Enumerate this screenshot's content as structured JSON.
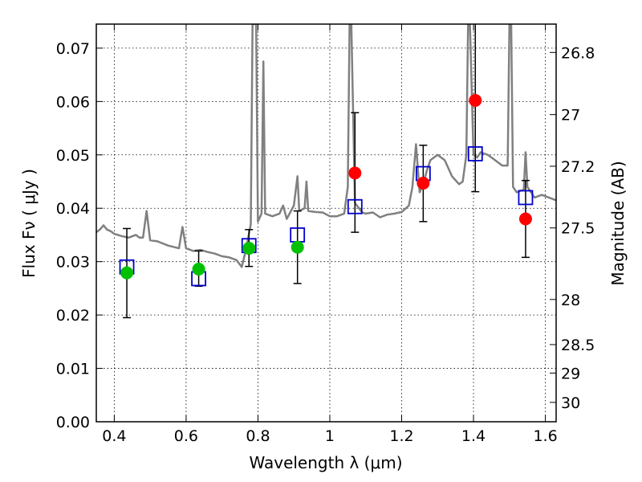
{
  "chart_data": {
    "type": "scatter",
    "xlabel": "Wavelength  λ (μm)",
    "ylabel": "Flux  Fν  ( μJy )",
    "y2label": "Magnitude (AB)",
    "xlim": [
      0.35,
      1.63
    ],
    "ylim": [
      0.0,
      0.0745
    ],
    "grid": true,
    "x_ticks": [
      0.4,
      0.6,
      0.8,
      1.0,
      1.2,
      1.4,
      1.6
    ],
    "x_tick_labels": [
      "0.4",
      "0.6",
      "0.8",
      "1",
      "1.2",
      "1.4",
      "1.6"
    ],
    "y_ticks": [
      0.0,
      0.01,
      0.02,
      0.03,
      0.04,
      0.05,
      0.06,
      0.07
    ],
    "y_tick_labels": [
      "0.00",
      "0.01",
      "0.02",
      "0.03",
      "0.04",
      "0.05",
      "0.06",
      "0.07"
    ],
    "y2_ticks": [
      26.8,
      27.0,
      27.2,
      27.5,
      28.0,
      28.5,
      29.0,
      30.0
    ],
    "y2_tick_labels": [
      "26.8",
      "27",
      "27.2",
      "27.5",
      "28",
      "28.5",
      "29",
      "30"
    ],
    "colors": {
      "model": "#808080",
      "green": "#00c000",
      "red": "#ff0000",
      "square": "#0000cc",
      "error": "#000000",
      "grid": "#000000"
    },
    "observed_points": [
      {
        "x": 0.435,
        "y": 0.0279,
        "yerr_low": 0.0084,
        "yerr_high": 0.0083,
        "color": "green"
      },
      {
        "x": 0.635,
        "y": 0.0286,
        "yerr_low": 0.0032,
        "yerr_high": 0.0034,
        "color": "green"
      },
      {
        "x": 0.775,
        "y": 0.0325,
        "yerr_low": 0.0034,
        "yerr_high": 0.0035,
        "color": "green"
      },
      {
        "x": 0.91,
        "y": 0.0327,
        "yerr_low": 0.0068,
        "yerr_high": 0.0068,
        "color": "green"
      },
      {
        "x": 1.07,
        "y": 0.0466,
        "yerr_low": 0.0111,
        "yerr_high": 0.0113,
        "color": "red"
      },
      {
        "x": 1.26,
        "y": 0.0447,
        "yerr_low": 0.0072,
        "yerr_high": 0.0071,
        "color": "red"
      },
      {
        "x": 1.405,
        "y": 0.0602,
        "yerr_low": 0.0171,
        "yerr_high": 0.0168,
        "color": "red"
      },
      {
        "x": 1.545,
        "y": 0.038,
        "yerr_low": 0.0072,
        "yerr_high": 0.0072,
        "color": "red"
      }
    ],
    "model_points": [
      {
        "x": 0.435,
        "y": 0.029
      },
      {
        "x": 0.635,
        "y": 0.0268
      },
      {
        "x": 0.775,
        "y": 0.033
      },
      {
        "x": 0.91,
        "y": 0.035
      },
      {
        "x": 1.07,
        "y": 0.0403
      },
      {
        "x": 1.26,
        "y": 0.0465
      },
      {
        "x": 1.405,
        "y": 0.0502
      },
      {
        "x": 1.545,
        "y": 0.042
      }
    ],
    "model_spectrum": [
      [
        0.35,
        0.0355
      ],
      [
        0.36,
        0.036
      ],
      [
        0.37,
        0.0368
      ],
      [
        0.38,
        0.036
      ],
      [
        0.39,
        0.0357
      ],
      [
        0.4,
        0.0352
      ],
      [
        0.42,
        0.0348
      ],
      [
        0.44,
        0.0345
      ],
      [
        0.46,
        0.035
      ],
      [
        0.47,
        0.0345
      ],
      [
        0.48,
        0.0345
      ],
      [
        0.49,
        0.0395
      ],
      [
        0.5,
        0.034
      ],
      [
        0.52,
        0.0338
      ],
      [
        0.55,
        0.033
      ],
      [
        0.58,
        0.0325
      ],
      [
        0.59,
        0.0365
      ],
      [
        0.6,
        0.0325
      ],
      [
        0.62,
        0.032
      ],
      [
        0.64,
        0.0322
      ],
      [
        0.66,
        0.0318
      ],
      [
        0.68,
        0.0315
      ],
      [
        0.7,
        0.031
      ],
      [
        0.72,
        0.0308
      ],
      [
        0.74,
        0.0303
      ],
      [
        0.755,
        0.029
      ],
      [
        0.765,
        0.0318
      ],
      [
        0.78,
        0.037
      ],
      [
        0.785,
        0.0745
      ],
      [
        0.795,
        0.0745
      ],
      [
        0.8,
        0.0375
      ],
      [
        0.81,
        0.039
      ],
      [
        0.815,
        0.0675
      ],
      [
        0.82,
        0.039
      ],
      [
        0.84,
        0.0385
      ],
      [
        0.86,
        0.039
      ],
      [
        0.87,
        0.0405
      ],
      [
        0.88,
        0.038
      ],
      [
        0.9,
        0.0405
      ],
      [
        0.91,
        0.046
      ],
      [
        0.915,
        0.0395
      ],
      [
        0.93,
        0.04
      ],
      [
        0.935,
        0.045
      ],
      [
        0.94,
        0.0395
      ],
      [
        0.96,
        0.0393
      ],
      [
        0.98,
        0.0392
      ],
      [
        1.0,
        0.0385
      ],
      [
        1.02,
        0.0385
      ],
      [
        1.04,
        0.039
      ],
      [
        1.05,
        0.044
      ],
      [
        1.055,
        0.0745
      ],
      [
        1.06,
        0.0745
      ],
      [
        1.07,
        0.041
      ],
      [
        1.09,
        0.0392
      ],
      [
        1.1,
        0.039
      ],
      [
        1.12,
        0.0392
      ],
      [
        1.14,
        0.0383
      ],
      [
        1.16,
        0.0388
      ],
      [
        1.18,
        0.039
      ],
      [
        1.2,
        0.0393
      ],
      [
        1.22,
        0.0405
      ],
      [
        1.23,
        0.044
      ],
      [
        1.24,
        0.052
      ],
      [
        1.25,
        0.043
      ],
      [
        1.26,
        0.0445
      ],
      [
        1.27,
        0.047
      ],
      [
        1.28,
        0.049
      ],
      [
        1.3,
        0.05
      ],
      [
        1.32,
        0.049
      ],
      [
        1.34,
        0.046
      ],
      [
        1.36,
        0.0445
      ],
      [
        1.37,
        0.045
      ],
      [
        1.38,
        0.05
      ],
      [
        1.385,
        0.0745
      ],
      [
        1.39,
        0.0745
      ],
      [
        1.4,
        0.05
      ],
      [
        1.41,
        0.0495
      ],
      [
        1.42,
        0.0505
      ],
      [
        1.44,
        0.05
      ],
      [
        1.46,
        0.049
      ],
      [
        1.48,
        0.048
      ],
      [
        1.495,
        0.048
      ],
      [
        1.5,
        0.0745
      ],
      [
        1.505,
        0.0745
      ],
      [
        1.51,
        0.044
      ],
      [
        1.52,
        0.043
      ],
      [
        1.54,
        0.0435
      ],
      [
        1.545,
        0.0505
      ],
      [
        1.55,
        0.044
      ],
      [
        1.57,
        0.042
      ],
      [
        1.59,
        0.0425
      ],
      [
        1.61,
        0.042
      ],
      [
        1.63,
        0.0415
      ]
    ]
  }
}
